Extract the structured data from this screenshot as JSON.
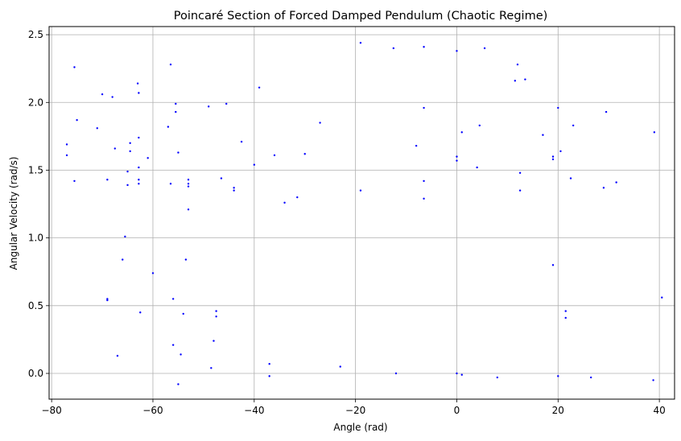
{
  "chart_data": {
    "type": "scatter",
    "title": "Poincaré Section of Forced Damped Pendulum (Chaotic Regime)",
    "xlabel": "Angle (rad)",
    "ylabel": "Angular Velocity (rad/s)",
    "xlim": [
      -80.5,
      43
    ],
    "ylim": [
      -0.19,
      2.56
    ],
    "xticks": [
      -80,
      -60,
      -40,
      -20,
      0,
      20,
      40
    ],
    "yticks": [
      0.0,
      0.5,
      1.0,
      1.5,
      2.0,
      2.5
    ],
    "xtick_labels": [
      "−80",
      "−60",
      "−40",
      "−20",
      "0",
      "20",
      "40"
    ],
    "ytick_labels": [
      "0.0",
      "0.5",
      "1.0",
      "1.5",
      "2.0",
      "2.5"
    ],
    "grid": true,
    "legend": "none",
    "marker_color": "#0000ff",
    "points": [
      [
        -77.0,
        1.69
      ],
      [
        -77.0,
        1.61
      ],
      [
        -75.5,
        2.26
      ],
      [
        -75.0,
        1.87
      ],
      [
        -75.5,
        1.42
      ],
      [
        -71.0,
        1.81
      ],
      [
        -70.0,
        2.06
      ],
      [
        -69.0,
        1.43
      ],
      [
        -68.0,
        2.04
      ],
      [
        -67.5,
        1.66
      ],
      [
        -69.0,
        0.55
      ],
      [
        -69.0,
        0.54
      ],
      [
        -67.0,
        0.13
      ],
      [
        -66.0,
        0.84
      ],
      [
        -65.5,
        1.01
      ],
      [
        -65.0,
        1.49
      ],
      [
        -65.0,
        1.39
      ],
      [
        -64.5,
        1.7
      ],
      [
        -64.5,
        1.64
      ],
      [
        -63.0,
        2.14
      ],
      [
        -62.8,
        2.07
      ],
      [
        -62.8,
        1.74
      ],
      [
        -62.8,
        1.52
      ],
      [
        -62.8,
        1.43
      ],
      [
        -62.8,
        1.4
      ],
      [
        -62.5,
        0.45
      ],
      [
        -61.0,
        1.59
      ],
      [
        -60.0,
        0.74
      ],
      [
        -57.0,
        1.82
      ],
      [
        -56.5,
        2.28
      ],
      [
        -56.5,
        1.4
      ],
      [
        -56.0,
        0.55
      ],
      [
        -56.0,
        0.21
      ],
      [
        -55.5,
        1.99
      ],
      [
        -55.5,
        1.93
      ],
      [
        -55.0,
        1.63
      ],
      [
        -55.0,
        -0.08
      ],
      [
        -54.5,
        0.14
      ],
      [
        -54.0,
        0.44
      ],
      [
        -53.5,
        0.84
      ],
      [
        -53.0,
        1.43
      ],
      [
        -53.0,
        1.4
      ],
      [
        -53.0,
        1.38
      ],
      [
        -53.0,
        1.21
      ],
      [
        -49.0,
        1.97
      ],
      [
        -48.5,
        0.04
      ],
      [
        -48.0,
        0.24
      ],
      [
        -47.5,
        0.46
      ],
      [
        -47.5,
        0.42
      ],
      [
        -46.5,
        1.44
      ],
      [
        -45.5,
        1.99
      ],
      [
        -44.0,
        1.37
      ],
      [
        -44.0,
        1.35
      ],
      [
        -42.5,
        1.71
      ],
      [
        -40.0,
        1.54
      ],
      [
        -39.0,
        2.11
      ],
      [
        -37.0,
        0.07
      ],
      [
        -37.0,
        -0.02
      ],
      [
        -36.0,
        1.61
      ],
      [
        -34.0,
        1.26
      ],
      [
        -31.5,
        1.3
      ],
      [
        -30.0,
        1.62
      ],
      [
        -27.0,
        1.85
      ],
      [
        -23.0,
        0.05
      ],
      [
        -19.0,
        2.44
      ],
      [
        -19.0,
        1.35
      ],
      [
        -12.5,
        2.4
      ],
      [
        -12.0,
        0.0
      ],
      [
        -8.0,
        1.68
      ],
      [
        -6.5,
        2.41
      ],
      [
        -6.5,
        1.96
      ],
      [
        -6.5,
        1.42
      ],
      [
        -6.5,
        1.29
      ],
      [
        0.0,
        2.38
      ],
      [
        0.0,
        1.6
      ],
      [
        0.0,
        1.57
      ],
      [
        0.0,
        0.0
      ],
      [
        1.0,
        1.78
      ],
      [
        1.0,
        -0.01
      ],
      [
        4.0,
        1.52
      ],
      [
        4.5,
        1.83
      ],
      [
        5.5,
        2.4
      ],
      [
        8.0,
        -0.03
      ],
      [
        11.5,
        2.16
      ],
      [
        12.0,
        2.28
      ],
      [
        12.5,
        1.48
      ],
      [
        12.5,
        1.35
      ],
      [
        13.5,
        2.17
      ],
      [
        17.0,
        1.76
      ],
      [
        19.0,
        1.6
      ],
      [
        19.0,
        1.58
      ],
      [
        19.0,
        0.8
      ],
      [
        20.0,
        1.96
      ],
      [
        20.0,
        -0.02
      ],
      [
        20.5,
        1.64
      ],
      [
        21.5,
        0.46
      ],
      [
        21.5,
        0.41
      ],
      [
        22.5,
        1.44
      ],
      [
        23.0,
        1.83
      ],
      [
        26.5,
        -0.03
      ],
      [
        29.0,
        1.37
      ],
      [
        29.5,
        1.93
      ],
      [
        31.5,
        1.41
      ],
      [
        39.0,
        1.78
      ],
      [
        38.8,
        -0.05
      ],
      [
        40.5,
        0.56
      ]
    ]
  }
}
